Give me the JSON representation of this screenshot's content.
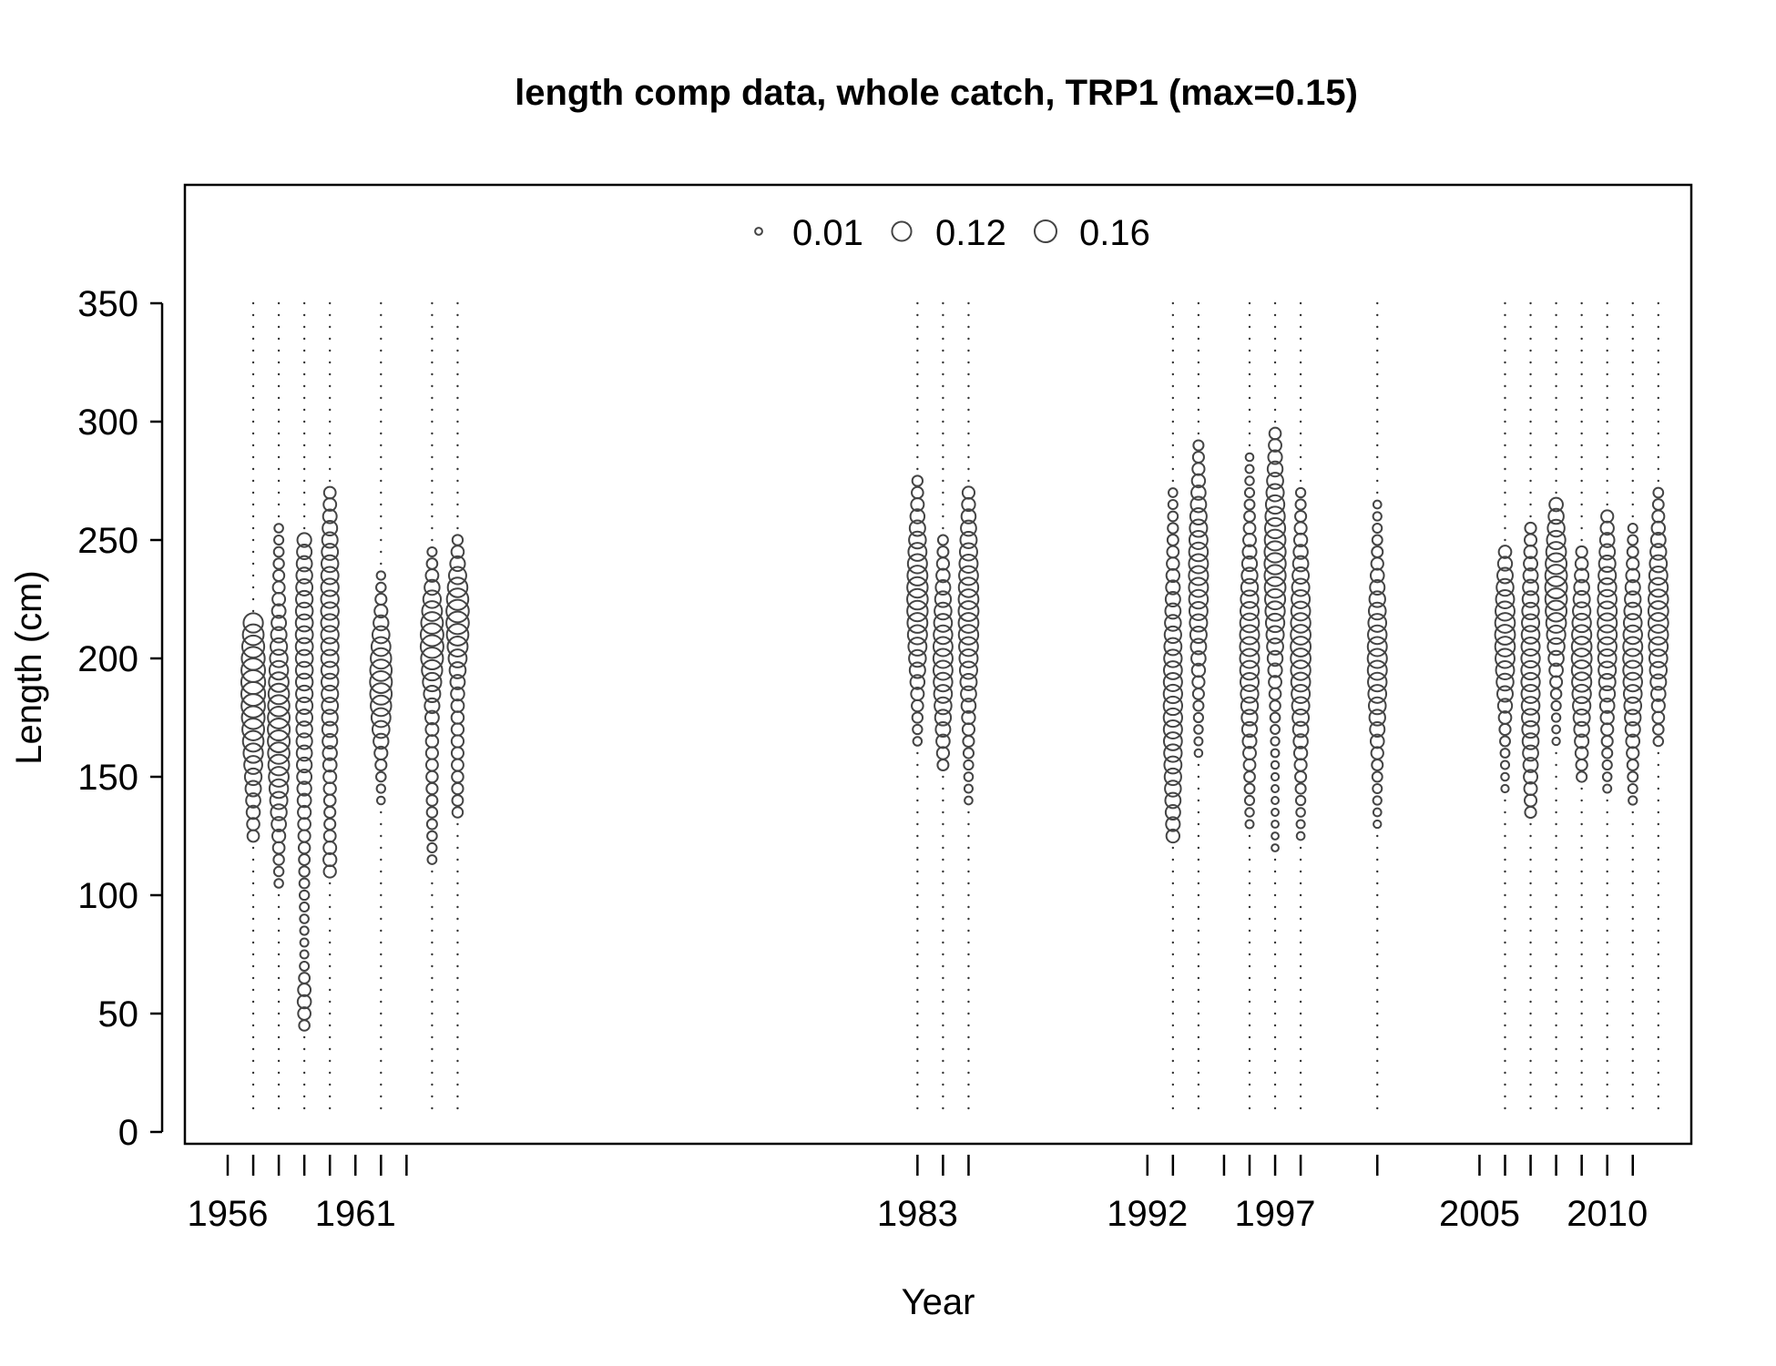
{
  "chart_data": {
    "type": "scatter",
    "subtype": "bubble",
    "title": "length comp data, whole catch, TRP1 (max=0.15)",
    "xlabel": "Year",
    "ylabel": "Length (cm)",
    "ylim": [
      0,
      400
    ],
    "y_ticks": [
      0,
      50,
      100,
      150,
      200,
      250,
      300,
      350
    ],
    "x_tick_years": [
      1956,
      1957,
      1958,
      1959,
      1960,
      1961,
      1962,
      1963,
      1983,
      1984,
      1985,
      1992,
      1993,
      1995,
      1996,
      1997,
      1998,
      2001,
      2005,
      2006,
      2007,
      2008,
      2009,
      2010,
      2011
    ],
    "x_tick_labels": [
      "1956",
      "1961",
      "1983",
      "1992",
      "1997",
      "2005",
      "2010"
    ],
    "legend": {
      "placement": "top",
      "entries": [
        "0.01",
        "0.12",
        "0.16"
      ],
      "sizes": [
        0.01,
        0.12,
        0.16
      ]
    },
    "length_bins": {
      "from": 10,
      "to": 350,
      "step": 5
    },
    "series": [
      {
        "year": 1957,
        "dist": [
          [
            190,
            0.15,
            25
          ],
          [
            170,
            0.04,
            40
          ]
        ],
        "ymin": 125,
        "ymax": 215
      },
      {
        "year": 1958,
        "dist": [
          [
            165,
            0.13,
            25
          ],
          [
            200,
            0.04,
            30
          ]
        ],
        "ymin": 105,
        "ymax": 255
      },
      {
        "year": 1959,
        "dist": [
          [
            185,
            0.07,
            45
          ],
          [
            230,
            0.03,
            25
          ],
          [
            55,
            0.04,
            8
          ]
        ],
        "ymin": 45,
        "ymax": 250
      },
      {
        "year": 1960,
        "dist": [
          [
            200,
            0.08,
            40
          ],
          [
            240,
            0.03,
            20
          ],
          [
            115,
            0.03,
            8
          ]
        ],
        "ymin": 110,
        "ymax": 270
      },
      {
        "year": 1962,
        "dist": [
          [
            190,
            0.15,
            18
          ]
        ],
        "ymin": 140,
        "ymax": 235
      },
      {
        "year": 1964,
        "dist": [
          [
            208,
            0.15,
            15
          ],
          [
            170,
            0.03,
            35
          ]
        ],
        "ymin": 115,
        "ymax": 245
      },
      {
        "year": 1965,
        "dist": [
          [
            218,
            0.15,
            15
          ],
          [
            170,
            0.03,
            35
          ]
        ],
        "ymin": 135,
        "ymax": 250
      },
      {
        "year": 1983,
        "dist": [
          [
            225,
            0.13,
            25
          ]
        ],
        "ymin": 165,
        "ymax": 275
      },
      {
        "year": 1984,
        "dist": [
          [
            200,
            0.11,
            25
          ]
        ],
        "ymin": 155,
        "ymax": 250
      },
      {
        "year": 1985,
        "dist": [
          [
            220,
            0.12,
            30
          ]
        ],
        "ymin": 140,
        "ymax": 270
      },
      {
        "year": 1993,
        "dist": [
          [
            180,
            0.1,
            40
          ]
        ],
        "ymin": 125,
        "ymax": 270
      },
      {
        "year": 1994,
        "dist": [
          [
            235,
            0.11,
            28
          ]
        ],
        "ymin": 160,
        "ymax": 290
      },
      {
        "year": 1996,
        "dist": [
          [
            205,
            0.11,
            30
          ]
        ],
        "ymin": 130,
        "ymax": 285
      },
      {
        "year": 1997,
        "dist": [
          [
            240,
            0.14,
            30
          ]
        ],
        "ymin": 120,
        "ymax": 295
      },
      {
        "year": 1998,
        "dist": [
          [
            205,
            0.12,
            30
          ]
        ],
        "ymin": 125,
        "ymax": 270
      },
      {
        "year": 2001,
        "dist": [
          [
            200,
            0.11,
            25
          ]
        ],
        "ymin": 130,
        "ymax": 265
      },
      {
        "year": 2006,
        "dist": [
          [
            210,
            0.12,
            22
          ]
        ],
        "ymin": 145,
        "ymax": 245
      },
      {
        "year": 2007,
        "dist": [
          [
            195,
            0.1,
            35
          ]
        ],
        "ymin": 135,
        "ymax": 255
      },
      {
        "year": 2008,
        "dist": [
          [
            230,
            0.15,
            22
          ]
        ],
        "ymin": 165,
        "ymax": 265
      },
      {
        "year": 2009,
        "dist": [
          [
            200,
            0.12,
            25
          ]
        ],
        "ymin": 150,
        "ymax": 245
      },
      {
        "year": 2010,
        "dist": [
          [
            215,
            0.11,
            28
          ]
        ],
        "ymin": 145,
        "ymax": 260
      },
      {
        "year": 2011,
        "dist": [
          [
            200,
            0.11,
            25
          ]
        ],
        "ymin": 140,
        "ymax": 255
      },
      {
        "year": 2012,
        "dist": [
          [
            218,
            0.12,
            25
          ]
        ],
        "ymin": 165,
        "ymax": 270
      }
    ]
  }
}
